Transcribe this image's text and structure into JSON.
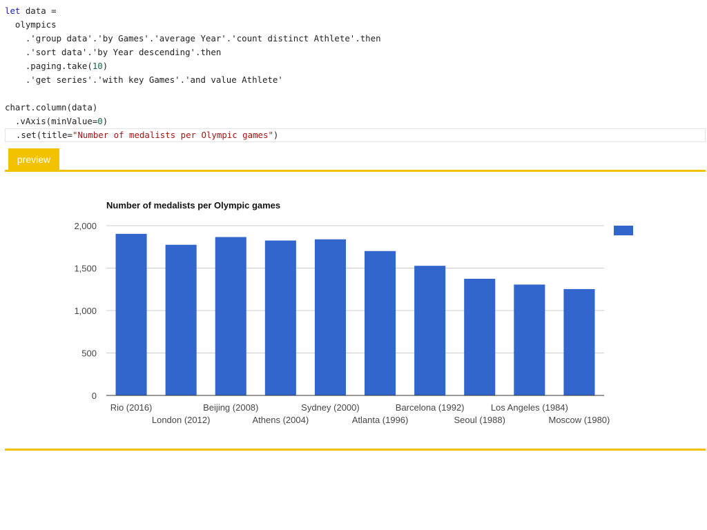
{
  "code": {
    "lines": [
      [
        {
          "t": "let",
          "c": "kw"
        },
        {
          "t": " data ="
        }
      ],
      [
        {
          "t": "  olympics"
        }
      ],
      [
        {
          "t": "    .'group data'.'by Games'.'average Year'.'count distinct Athlete'.then"
        }
      ],
      [
        {
          "t": "    .'sort data'.'by Year descending'.then"
        }
      ],
      [
        {
          "t": "    .paging.take("
        },
        {
          "t": "10",
          "c": "num"
        },
        {
          "t": ")"
        }
      ],
      [
        {
          "t": "    .'get series'.'with key Games'.'and value Athlete'"
        }
      ],
      [],
      [
        {
          "t": "chart.column(data)"
        }
      ],
      [
        {
          "t": "  .vAxis(minValue="
        },
        {
          "t": "0",
          "c": "num"
        },
        {
          "t": ")"
        }
      ],
      [
        {
          "t": "  .set(title="
        },
        {
          "t": "\"Number of medalists per Olympic games\"",
          "c": "str"
        },
        {
          "t": ")"
        }
      ]
    ]
  },
  "preview_tab": {
    "label": "preview"
  },
  "colors": {
    "bar": "#3366cc",
    "accent": "#f2c200",
    "grid": "#cccccc"
  },
  "chart_data": {
    "type": "bar",
    "title": "Number of medalists per Olympic games",
    "categories": [
      "Rio (2016)",
      "London (2012)",
      "Beijing (2008)",
      "Athens (2004)",
      "Sydney (2000)",
      "Atlanta (1996)",
      "Barcelona (1992)",
      "Seoul (1988)",
      "Los Angeles (1984)",
      "Moscow (1980)"
    ],
    "values": [
      1904,
      1775,
      1866,
      1825,
      1839,
      1701,
      1527,
      1374,
      1306,
      1253
    ],
    "ylim": [
      0,
      2000
    ],
    "yticks": [
      0,
      500,
      1000,
      1500,
      2000
    ],
    "ytick_labels": [
      "0",
      "500",
      "1,000",
      "1,500",
      "2,000"
    ],
    "xlabel": "",
    "ylabel": "",
    "grid": true,
    "legend": "right"
  }
}
